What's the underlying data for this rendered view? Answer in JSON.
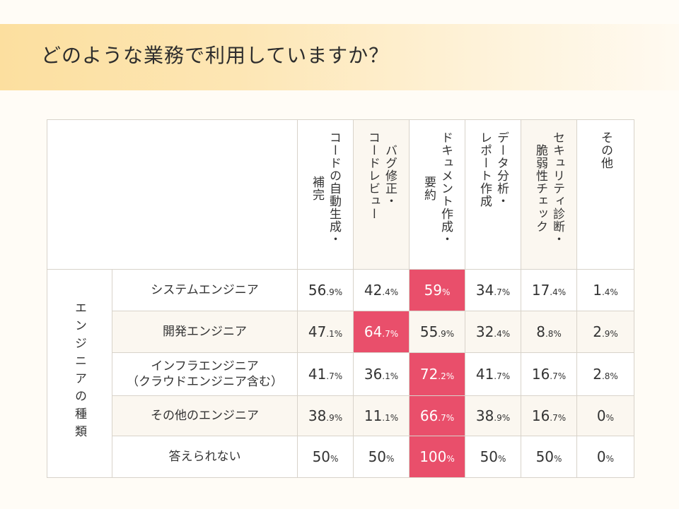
{
  "title": "どのような業務で利用していますか？",
  "chart_data": {
    "type": "table",
    "title": "どのような業務で利用していますか？",
    "row_group_label": "エンジニアの種類",
    "columns": [
      {
        "lines": [
          "コードの自動生成・",
          "補完"
        ],
        "label": "コードの自動生成・補完"
      },
      {
        "lines": [
          "バグ修正・",
          "コードレビュー"
        ],
        "label": "バグ修正・コードレビュー"
      },
      {
        "lines": [
          "ドキュメント作成・",
          "要約"
        ],
        "label": "ドキュメント作成・要約"
      },
      {
        "lines": [
          "データ分析・",
          "レポート作成"
        ],
        "label": "データ分析・レポート作成"
      },
      {
        "lines": [
          "セキュリティ診断・",
          "脆弱性チェック"
        ],
        "label": "セキュリティ診断・脆弱性チェック"
      },
      {
        "lines": [
          "その他"
        ],
        "label": "その他"
      }
    ],
    "rows": [
      {
        "label": "システムエンジニア",
        "sublabel": "",
        "cells": [
          {
            "int": "56",
            "dec": ".9",
            "pct": "%"
          },
          {
            "int": "42",
            "dec": ".4",
            "pct": "%"
          },
          {
            "int": "59",
            "dec": "",
            "pct": "%"
          },
          {
            "int": "34",
            "dec": ".7",
            "pct": "%"
          },
          {
            "int": "17",
            "dec": ".4",
            "pct": "%"
          },
          {
            "int": "1",
            "dec": ".4",
            "pct": "%"
          }
        ]
      },
      {
        "label": "開発エンジニア",
        "sublabel": "",
        "cells": [
          {
            "int": "47",
            "dec": ".1",
            "pct": "%"
          },
          {
            "int": "64",
            "dec": ".7",
            "pct": "%"
          },
          {
            "int": "55",
            "dec": ".9",
            "pct": "%"
          },
          {
            "int": "32",
            "dec": ".4",
            "pct": "%"
          },
          {
            "int": "8",
            "dec": ".8",
            "pct": "%"
          },
          {
            "int": "2",
            "dec": ".9",
            "pct": "%"
          }
        ]
      },
      {
        "label": "インフラエンジニア",
        "sublabel": "（クラウドエンジニア含む）",
        "cells": [
          {
            "int": "41",
            "dec": ".7",
            "pct": "%"
          },
          {
            "int": "36",
            "dec": ".1",
            "pct": "%"
          },
          {
            "int": "72",
            "dec": ".2",
            "pct": "%"
          },
          {
            "int": "41",
            "dec": ".7",
            "pct": "%"
          },
          {
            "int": "16",
            "dec": ".7",
            "pct": "%"
          },
          {
            "int": "2",
            "dec": ".8",
            "pct": "%"
          }
        ]
      },
      {
        "label": "その他のエンジニア",
        "sublabel": "",
        "cells": [
          {
            "int": "38",
            "dec": ".9",
            "pct": "%"
          },
          {
            "int": "11",
            "dec": ".1",
            "pct": "%"
          },
          {
            "int": "66",
            "dec": ".7",
            "pct": "%"
          },
          {
            "int": "38",
            "dec": ".9",
            "pct": "%"
          },
          {
            "int": "16",
            "dec": ".7",
            "pct": "%"
          },
          {
            "int": "0",
            "dec": "",
            "pct": "%"
          }
        ]
      },
      {
        "label": "答えられない",
        "sublabel": "",
        "cells": [
          {
            "int": "50",
            "dec": "",
            "pct": "%"
          },
          {
            "int": "50",
            "dec": "",
            "pct": "%"
          },
          {
            "int": "100",
            "dec": "",
            "pct": "%"
          },
          {
            "int": "50",
            "dec": "",
            "pct": "%"
          },
          {
            "int": "50",
            "dec": "",
            "pct": "%"
          },
          {
            "int": "0",
            "dec": "",
            "pct": "%"
          }
        ]
      }
    ],
    "highlight": [
      {
        "row": 0,
        "col": 2
      },
      {
        "row": 1,
        "col": 1
      },
      {
        "row": 2,
        "col": 2
      },
      {
        "row": 3,
        "col": 2
      },
      {
        "row": 4,
        "col": 2
      }
    ],
    "colors": {
      "highlight": "#e94f6b",
      "title_band": "#fcdf9f",
      "cream": "#fbf7f0"
    }
  }
}
